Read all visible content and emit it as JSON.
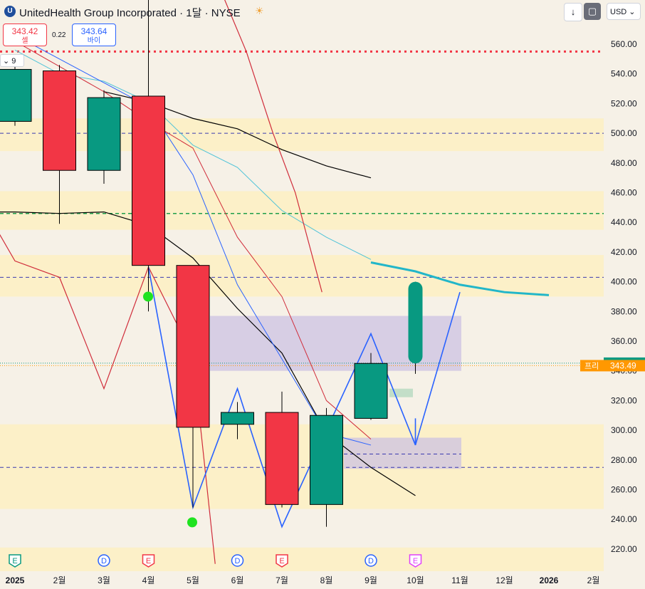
{
  "header": {
    "symbol_icon": "U",
    "title": "UnitedHealth Group Incorporated · 1달 · NYSE",
    "market_icon": "sun-icon",
    "sell_price": "343.42",
    "sell_label": "셀",
    "spread": "0.22",
    "buy_price": "343.64",
    "buy_label": "바이",
    "collapse_label": "9",
    "currency": "USD",
    "scroll_down_icon": "arrow-down-icon",
    "fullscreen_icon": "square-icon"
  },
  "chart_data": {
    "type": "candlestick",
    "ylim": [
      205,
      575
    ],
    "y_ticks": [
      220,
      240,
      260,
      280,
      300,
      320,
      340,
      360,
      380,
      400,
      420,
      440,
      460,
      480,
      500,
      520,
      540,
      560
    ],
    "x_labels": [
      "2025",
      "2월",
      "3월",
      "4월",
      "5월",
      "6월",
      "7월",
      "8월",
      "9월",
      "10월",
      "11월",
      "12월",
      "2026",
      "2월"
    ],
    "candles": [
      {
        "month": "2025-01",
        "open": 508,
        "high": 546,
        "low": 505,
        "close": 543
      },
      {
        "month": "2025-02",
        "open": 542,
        "high": 546,
        "low": 439,
        "close": 475
      },
      {
        "month": "2025-03",
        "open": 475,
        "high": 529,
        "low": 466,
        "close": 524
      },
      {
        "month": "2025-04",
        "open": 525,
        "high": 600,
        "low": 380,
        "close": 411
      },
      {
        "month": "2025-05",
        "open": 411,
        "high": 411,
        "low": 248,
        "close": 302
      },
      {
        "month": "2025-06",
        "open": 304,
        "high": 319,
        "low": 294,
        "close": 312
      },
      {
        "month": "2025-07",
        "open": 312,
        "high": 326,
        "low": 248,
        "close": 250
      },
      {
        "month": "2025-08",
        "open": 250,
        "high": 315,
        "low": 235,
        "close": 310
      },
      {
        "month": "2025-09",
        "open": 308,
        "high": 352,
        "low": 307,
        "close": 345
      },
      {
        "month": "2025-10",
        "open": 345,
        "high": 400,
        "low": 338,
        "close": 400
      }
    ],
    "price_labels": [
      {
        "label": "",
        "value": "345.18",
        "color": "#089981"
      },
      {
        "label": "프리",
        "value": "343.49",
        "color": "#ff9800"
      }
    ],
    "events": [
      {
        "month": "2025-01",
        "type": "E",
        "color": "#089981"
      },
      {
        "month": "2025-03",
        "type": "D",
        "color": "#2962ff"
      },
      {
        "month": "2025-04",
        "type": "E",
        "color": "#f23645"
      },
      {
        "month": "2025-06",
        "type": "D",
        "color": "#2962ff"
      },
      {
        "month": "2025-07",
        "type": "E",
        "color": "#f23645"
      },
      {
        "month": "2025-09",
        "type": "D",
        "color": "#2962ff"
      },
      {
        "month": "2025-10",
        "type": "E",
        "color": "#e040fb"
      }
    ],
    "colors": {
      "up": "#089981",
      "down": "#f23645",
      "zone": "#fdf0c2",
      "box": "#cbbfe3",
      "ma_cyan": "#22b6c9",
      "projection": "#2962ff"
    }
  }
}
